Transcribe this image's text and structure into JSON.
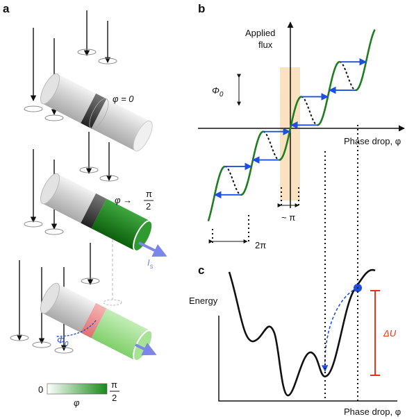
{
  "panel_a": {
    "label": "a",
    "state_1": {
      "phase": "φ = 0"
    },
    "state_2": {
      "phase_prefix": "φ →",
      "phase_num": "π",
      "phase_den": "2",
      "current": "I",
      "current_sub": "s"
    },
    "state_3": {
      "flux": "Φ",
      "flux_sub": "0"
    },
    "colorbar": {
      "min": "0",
      "max_num": "π",
      "max_den": "2",
      "label": "φ"
    }
  },
  "panel_b": {
    "label": "b",
    "y_label_1": "Applied",
    "y_label_2": "flux",
    "x_label": "Phase drop, φ",
    "period_flux": "Φ",
    "period_flux_sub": "0",
    "width": "~ π",
    "period": "2π"
  },
  "panel_c": {
    "label": "c",
    "y_label": "Energy",
    "x_label": "Phase drop, φ",
    "barrier": "ΔU"
  }
}
